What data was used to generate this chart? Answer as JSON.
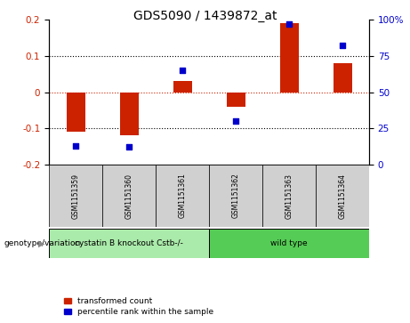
{
  "title": "GDS5090 / 1439872_at",
  "samples": [
    "GSM1151359",
    "GSM1151360",
    "GSM1151361",
    "GSM1151362",
    "GSM1151363",
    "GSM1151364"
  ],
  "red_bars": [
    -0.11,
    -0.12,
    0.03,
    -0.04,
    0.19,
    0.08
  ],
  "blue_dots_pct": [
    13,
    12,
    65,
    30,
    97,
    82
  ],
  "ylim_left": [
    -0.2,
    0.2
  ],
  "ylim_right": [
    0,
    100
  ],
  "yticks_left": [
    -0.2,
    -0.1,
    0.0,
    0.1,
    0.2
  ],
  "yticks_right": [
    0,
    25,
    50,
    75,
    100
  ],
  "ytick_labels_right": [
    "0",
    "25",
    "50",
    "75",
    "100%"
  ],
  "group1_label": "cystatin B knockout Cstb-/-",
  "group2_label": "wild type",
  "group1_indices": [
    0,
    1,
    2
  ],
  "group2_indices": [
    3,
    4,
    5
  ],
  "group1_color": "#aaeaaa",
  "group2_color": "#55cc55",
  "bar_color": "#cc2200",
  "dot_color": "#0000cc",
  "bg_color": "#d0d0d0",
  "plot_bg": "#ffffff",
  "legend_red_label": "transformed count",
  "legend_blue_label": "percentile rank within the sample",
  "bar_width": 0.35
}
